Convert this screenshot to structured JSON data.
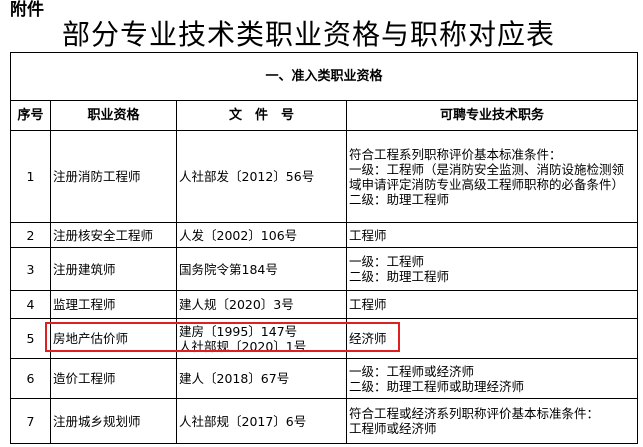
{
  "attachment_label": "附件",
  "title": "部分专业技术类职业资格与职称对应表",
  "section": "一、准入类职业资格",
  "columns": [
    "序号",
    "职业资格",
    "文　件　号",
    "可聘专业技术职务"
  ],
  "rows": [
    {
      "no": "1",
      "qualification": "注册消防工程师",
      "document": [
        "人社部发〔2012〕56号"
      ],
      "positions": [
        "符合工程系列职称评价基本标准条件：",
        "一级：工程师（是消防安全监测、消防设施检测领域申请评定消防专业高级工程师职称的必备条件）",
        "二级：助理工程师"
      ]
    },
    {
      "no": "2",
      "qualification": "注册核安全工程师",
      "document": [
        "人发〔2002〕106号"
      ],
      "positions": [
        "工程师"
      ]
    },
    {
      "no": "3",
      "qualification": "注册建筑师",
      "document": [
        "国务院令第184号"
      ],
      "positions": [
        "一级：工程师",
        "二级：助理工程师"
      ]
    },
    {
      "no": "4",
      "qualification": "监理工程师",
      "document": [
        "建人规〔2020〕3号"
      ],
      "positions": [
        "工程师"
      ]
    },
    {
      "no": "5",
      "qualification": "房地产估价师",
      "document": [
        "建房〔1995〕147号",
        "人社部规〔2020〕1号"
      ],
      "positions": [
        "经济师"
      ],
      "highlighted": true
    },
    {
      "no": "6",
      "qualification": "造价工程师",
      "document": [
        "建人〔2018〕67号"
      ],
      "positions": [
        "一级：工程师或经济师",
        "二级：助理工程师或助理经济师"
      ]
    },
    {
      "no": "7",
      "qualification": "注册城乡规划师",
      "document": [
        "人社部规〔2017〕6号"
      ],
      "positions": [
        "符合工程或经济系列职称评价基本标准条件：",
        "工程师或经济师"
      ]
    }
  ],
  "colors": {
    "highlight_border": "#e02020"
  }
}
